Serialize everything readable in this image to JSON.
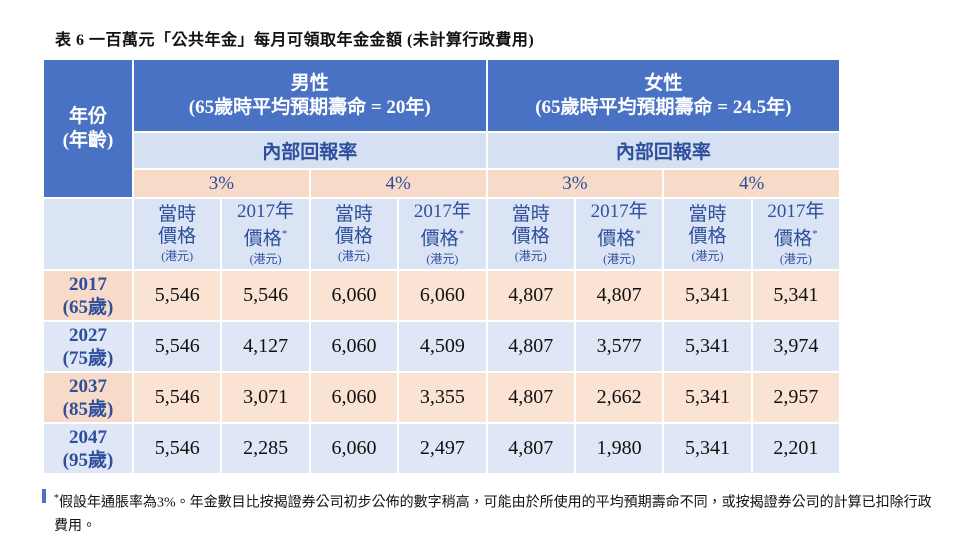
{
  "title": "表 6 一百萬元「公共年金」每月可領取年金金額 (未計算行政費用)",
  "header": {
    "year_label": [
      "年份",
      "(年齡)"
    ],
    "groups": [
      {
        "name": "男性",
        "subtitle": "(65歲時平均預期壽命 = 20年)",
        "rate_label": "內部回報率",
        "rates": [
          {
            "rate": "3%",
            "columns": [
              {
                "lines": [
                  "當時",
                  "價格"
                ],
                "mark": "",
                "unit": "(港元)"
              },
              {
                "lines": [
                  "2017年",
                  "價格"
                ],
                "mark": "*",
                "unit": "(港元)"
              }
            ]
          },
          {
            "rate": "4%",
            "columns": [
              {
                "lines": [
                  "當時",
                  "價格"
                ],
                "mark": "",
                "unit": "(港元)"
              },
              {
                "lines": [
                  "2017年",
                  "價格"
                ],
                "mark": "*",
                "unit": "(港元)"
              }
            ]
          }
        ]
      },
      {
        "name": "女性",
        "subtitle": "(65歲時平均預期壽命 = 24.5年)",
        "rate_label": "內部回報率",
        "rates": [
          {
            "rate": "3%",
            "columns": [
              {
                "lines": [
                  "當時",
                  "價格"
                ],
                "mark": "",
                "unit": "(港元)"
              },
              {
                "lines": [
                  "2017年",
                  "價格"
                ],
                "mark": "*",
                "unit": "(港元)"
              }
            ]
          },
          {
            "rate": "4%",
            "columns": [
              {
                "lines": [
                  "當時",
                  "價格"
                ],
                "mark": "",
                "unit": "(港元)"
              },
              {
                "lines": [
                  "2017年",
                  "價格"
                ],
                "mark": "*",
                "unit": "(港元)"
              }
            ]
          }
        ]
      }
    ]
  },
  "table": {
    "rows": [
      {
        "year": "2017",
        "age": "(65歲)",
        "values": [
          "5,546",
          "5,546",
          "6,060",
          "6,060",
          "4,807",
          "4,807",
          "5,341",
          "5,341"
        ]
      },
      {
        "year": "2027",
        "age": "(75歲)",
        "values": [
          "5,546",
          "4,127",
          "6,060",
          "4,509",
          "4,807",
          "3,577",
          "5,341",
          "3,974"
        ]
      },
      {
        "year": "2037",
        "age": "(85歲)",
        "values": [
          "5,546",
          "3,071",
          "6,060",
          "3,355",
          "4,807",
          "2,662",
          "5,341",
          "2,957"
        ]
      },
      {
        "year": "2047",
        "age": "(95歲)",
        "values": [
          "5,546",
          "2,285",
          "6,060",
          "2,497",
          "4,807",
          "1,980",
          "5,341",
          "2,201"
        ]
      }
    ]
  },
  "footnote": {
    "marker": "*",
    "text": "假設年通脹率為3%。年金數目比按揭證券公司初步公佈的數字稍高，可能由於所使用的平均預期壽命不同，或按揭證券公司的計算已扣除行政費用。"
  }
}
